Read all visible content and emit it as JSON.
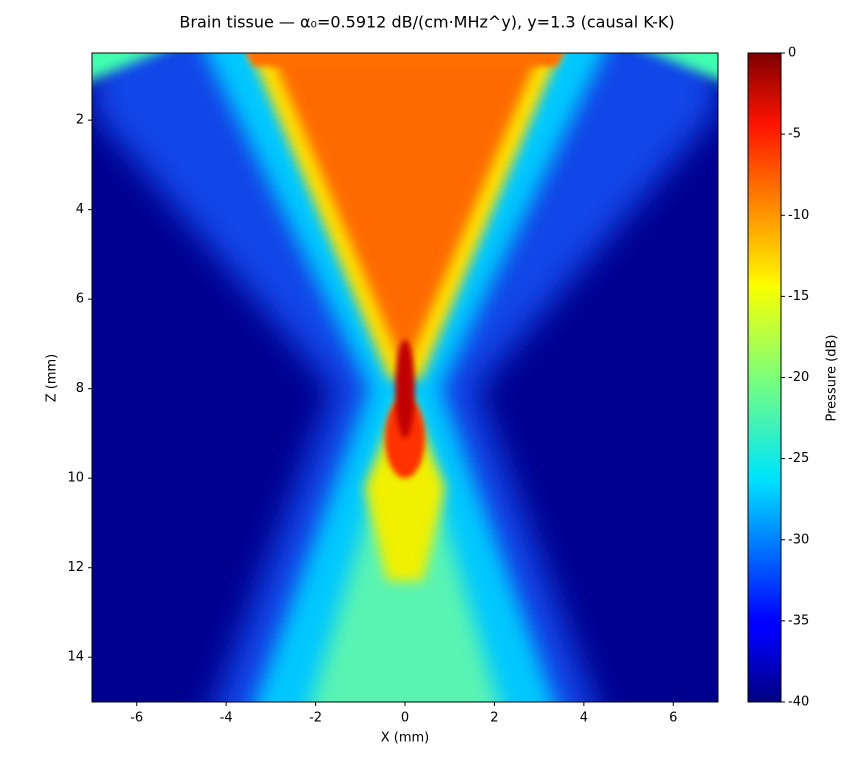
{
  "chart_data": {
    "type": "heatmap",
    "title": "Brain tissue — α₀=0.5912 dB/(cm·MHz^y), y=1.3  (causal K-K)",
    "x_label": "X (mm)",
    "y_label": "Z (mm)",
    "xlim": [
      -7,
      7
    ],
    "ylim": [
      15,
      0.5
    ],
    "xticks": [
      -6,
      -4,
      -2,
      0,
      2,
      4,
      6
    ],
    "yticks": [
      2,
      4,
      6,
      8,
      10,
      12,
      14
    ],
    "colormap": "jet",
    "colorbar": {
      "label": "Pressure (dB)",
      "lim": [
        -40,
        0
      ],
      "ticks": [
        0,
        -5,
        -10,
        -15,
        -20,
        -25,
        -30,
        -35,
        -40
      ]
    }
  }
}
